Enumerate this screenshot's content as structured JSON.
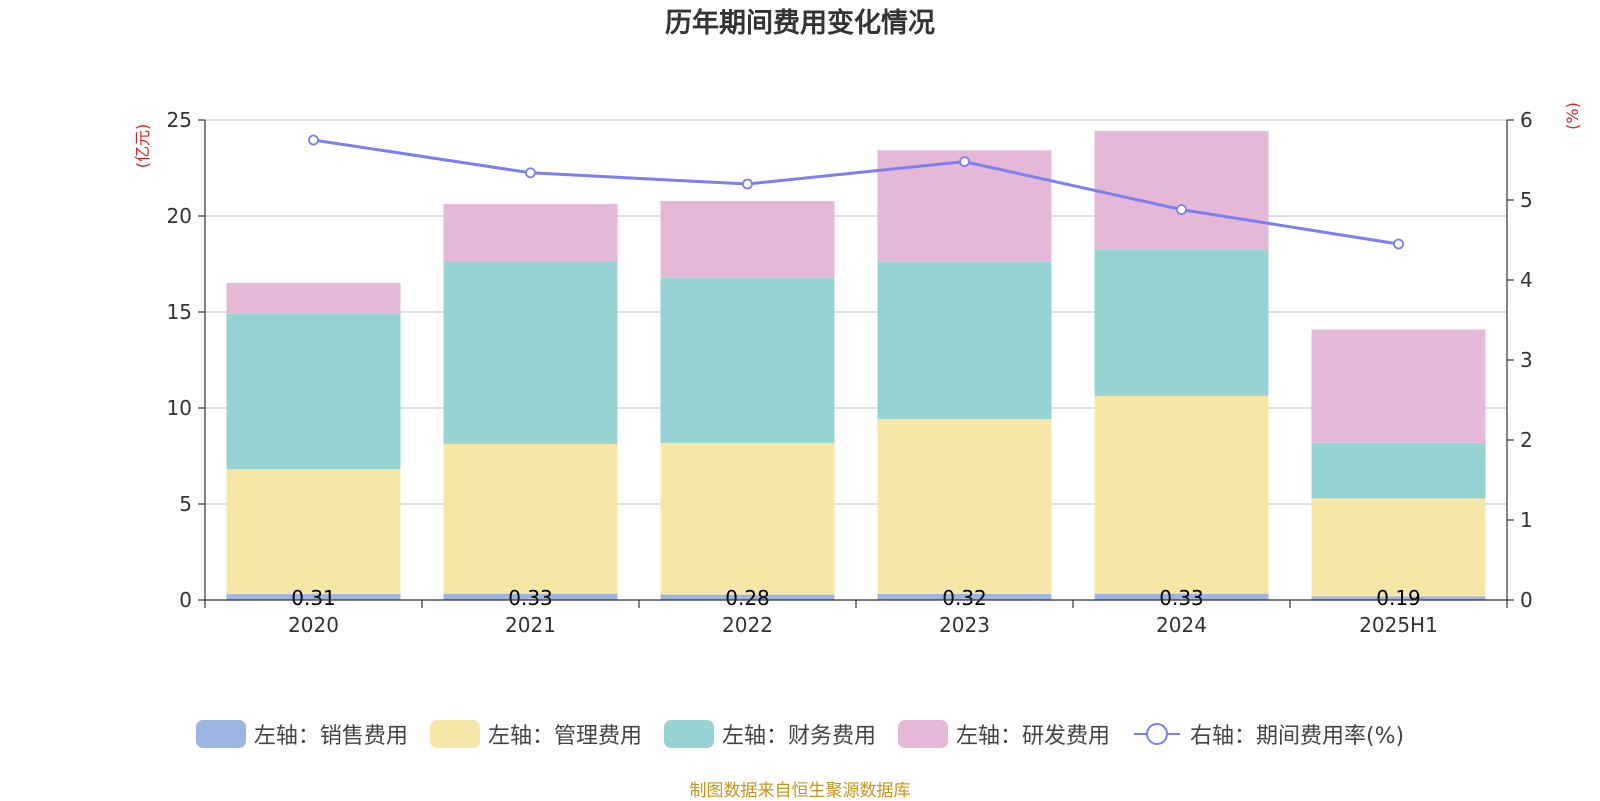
{
  "chart_data": {
    "type": "bar",
    "title": "历年期间费用变化情况",
    "categories": [
      "2020",
      "2021",
      "2022",
      "2023",
      "2024",
      "2025H1"
    ],
    "ylabel_left": "(亿元)",
    "ylabel_right": "(%)",
    "ylim_left": [
      0,
      25
    ],
    "yticks_left": [
      0,
      5,
      10,
      15,
      20,
      25
    ],
    "ylim_right": [
      0,
      6
    ],
    "yticks_right": [
      0,
      1,
      2,
      3,
      4,
      5,
      6
    ],
    "grid": true,
    "stacked": true,
    "series": [
      {
        "name": "左轴：销售费用",
        "axis": "left",
        "type": "bar",
        "color": "#9db5e2",
        "values": [
          0.31,
          0.33,
          0.28,
          0.32,
          0.33,
          0.19
        ],
        "labels": [
          "0.31",
          "0.33",
          "0.28",
          "0.32",
          "0.33",
          "0.19"
        ]
      },
      {
        "name": "左轴：管理费用",
        "axis": "left",
        "type": "bar",
        "color": "#f7e7a6",
        "values": [
          6.5,
          7.8,
          7.9,
          9.1,
          10.3,
          5.1
        ]
      },
      {
        "name": "左轴：财务费用",
        "axis": "left",
        "type": "bar",
        "color": "#98d3d4",
        "values": [
          8.1,
          9.5,
          8.6,
          8.2,
          7.6,
          2.9
        ]
      },
      {
        "name": "左轴：研发费用",
        "axis": "left",
        "type": "bar",
        "color": "#e6b8d8",
        "values": [
          1.6,
          3.0,
          4.0,
          5.8,
          6.2,
          5.9
        ]
      },
      {
        "name": "右轴：期间费用率(%)",
        "axis": "right",
        "type": "line",
        "color": "#7b7ff0",
        "values": [
          5.75,
          5.34,
          5.2,
          5.48,
          4.88,
          4.45
        ]
      }
    ],
    "legend_position": "bottom"
  },
  "source_note": "制图数据来自恒生聚源数据库"
}
